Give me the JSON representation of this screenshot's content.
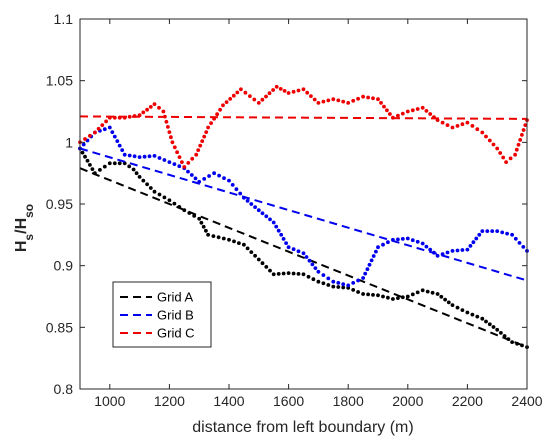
{
  "chart_data": {
    "type": "scatter",
    "xlabel": "distance from left boundary (m)",
    "ylabel": {
      "main": "H",
      "sub1": "s",
      "sep": "/H",
      "sub2": "so"
    },
    "xlim": [
      900,
      2400
    ],
    "ylim": [
      0.8,
      1.1
    ],
    "xticks": [
      1000,
      1200,
      1400,
      1600,
      1800,
      2000,
      2200,
      2400
    ],
    "yticks": [
      0.8,
      0.85,
      0.9,
      0.95,
      1,
      1.05,
      1.1
    ],
    "xtick_labels": [
      "1000",
      "1200",
      "1400",
      "1600",
      "1800",
      "2000",
      "2200",
      "2400"
    ],
    "ytick_labels": [
      "0.8",
      "0.85",
      "0.9",
      "0.95",
      "1",
      "1.05",
      "1.1"
    ],
    "grid": false,
    "legend": {
      "placement": "bottom-left"
    },
    "series": [
      {
        "name": "Grid A",
        "color": "#000000",
        "fit_line": {
          "x": [
            900,
            2400
          ],
          "y": [
            0.979,
            0.834
          ]
        },
        "points": {
          "x": [
            900,
            950,
            1000,
            1050,
            1080,
            1100,
            1150,
            1200,
            1250,
            1300,
            1330,
            1400,
            1450,
            1500,
            1550,
            1600,
            1650,
            1700,
            1750,
            1800,
            1850,
            1900,
            1950,
            2000,
            2050,
            2100,
            2150,
            2200,
            2250,
            2300,
            2350,
            2400
          ],
          "y": [
            0.995,
            0.975,
            0.983,
            0.983,
            0.978,
            0.972,
            0.96,
            0.953,
            0.945,
            0.938,
            0.925,
            0.921,
            0.917,
            0.905,
            0.893,
            0.894,
            0.893,
            0.887,
            0.883,
            0.882,
            0.877,
            0.876,
            0.873,
            0.875,
            0.88,
            0.877,
            0.868,
            0.862,
            0.857,
            0.848,
            0.838,
            0.834
          ]
        }
      },
      {
        "name": "Grid B",
        "color": "#0000ee",
        "fit_line": {
          "x": [
            900,
            2400
          ],
          "y": [
            0.995,
            0.888
          ]
        },
        "points": {
          "x": [
            900,
            950,
            1000,
            1050,
            1100,
            1150,
            1200,
            1250,
            1300,
            1350,
            1400,
            1450,
            1500,
            1550,
            1600,
            1650,
            1700,
            1750,
            1800,
            1850,
            1900,
            1950,
            2000,
            2050,
            2100,
            2150,
            2200,
            2250,
            2300,
            2350,
            2400
          ],
          "y": [
            0.995,
            1.008,
            1.012,
            0.99,
            0.988,
            0.989,
            0.984,
            0.979,
            0.968,
            0.975,
            0.969,
            0.955,
            0.945,
            0.935,
            0.915,
            0.91,
            0.895,
            0.887,
            0.884,
            0.89,
            0.915,
            0.921,
            0.922,
            0.918,
            0.908,
            0.912,
            0.913,
            0.928,
            0.928,
            0.925,
            0.912
          ]
        }
      },
      {
        "name": "Grid C",
        "color": "#ee0000",
        "fit_line": {
          "x": [
            900,
            2400
          ],
          "y": [
            1.021,
            1.019
          ]
        },
        "points": {
          "x": [
            900,
            950,
            1000,
            1050,
            1100,
            1150,
            1180,
            1210,
            1250,
            1290,
            1330,
            1380,
            1440,
            1500,
            1560,
            1600,
            1650,
            1700,
            1750,
            1800,
            1850,
            1900,
            1950,
            2000,
            2050,
            2100,
            2150,
            2200,
            2250,
            2300,
            2330,
            2360,
            2400
          ],
          "y": [
            1.0,
            1.008,
            1.02,
            1.02,
            1.022,
            1.031,
            1.025,
            1.0,
            0.98,
            0.99,
            1.012,
            1.03,
            1.043,
            1.032,
            1.045,
            1.04,
            1.043,
            1.032,
            1.035,
            1.032,
            1.037,
            1.035,
            1.02,
            1.025,
            1.028,
            1.018,
            1.012,
            1.016,
            1.008,
            0.995,
            0.984,
            0.99,
            1.018
          ]
        }
      }
    ]
  }
}
